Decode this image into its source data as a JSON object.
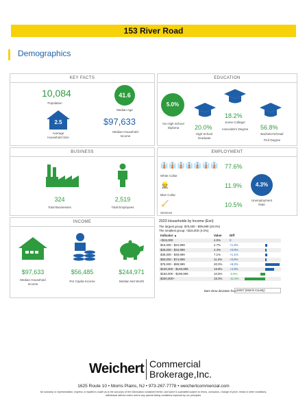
{
  "property_title": "153 River Road",
  "section_title": "Demographics",
  "key_facts": {
    "header": "KEY FACTS",
    "population": {
      "value": "10,084",
      "label": "Population"
    },
    "median_age": {
      "value": "41.6",
      "label": "Median Age"
    },
    "household_size": {
      "value": "2.5",
      "label_1": "Average",
      "label_2": "Household Size"
    },
    "median_income": {
      "value": "$97,633",
      "label_1": "Median Household",
      "label_2": "Income"
    }
  },
  "education": {
    "header": "EDUCATION",
    "no_hs": {
      "value": "5.0%",
      "label_1": "No High School",
      "label_2": "Diploma"
    },
    "hs_grad": {
      "value": "20.0%",
      "label_1": "High School",
      "label_2": "Graduate"
    },
    "some_college": {
      "value": "18.2%",
      "label_1": "Some College/",
      "label_2": "Associate's Degree"
    },
    "bachelor": {
      "value": "56.8%",
      "label_1": "Bachelor's/Grad/",
      "label_2": "Prof Degree"
    }
  },
  "business": {
    "header": "BUSINESS",
    "total_businesses": {
      "value": "324",
      "label": "Total Businesses"
    },
    "total_employees": {
      "value": "2,519",
      "label": "Total Employees"
    }
  },
  "employment": {
    "header": "EMPLOYMENT",
    "white_collar": {
      "value": "77.6%",
      "label": "White Collar"
    },
    "blue_collar": {
      "value": "11.9%",
      "label": "Blue Collar"
    },
    "services": {
      "value": "10.5%",
      "label": "Services"
    },
    "unemployment": {
      "value": "4.3%",
      "label_1": "Unemployment",
      "label_2": "Rate"
    }
  },
  "income": {
    "header": "INCOME",
    "median_household": {
      "value": "$97,633",
      "label_1": "Median Household",
      "label_2": "Income"
    },
    "per_capita": {
      "value": "$56,485",
      "label": "Per Capita Income"
    },
    "net_worth": {
      "value": "$244,971",
      "label": "Median Net Worth"
    }
  },
  "households_by_income": {
    "title": "2023 Households by Income (Esri)",
    "largest": "The largest group: $75,000 - $99,999 (20.0%)",
    "smallest": "The smallest group: <$15,000 (4.0%)",
    "col_indicator": "Indicator ▲",
    "col_value": "Value",
    "col_diff": "Diff",
    "rows": [
      {
        "indicator": "<$15,000",
        "value": "4.0%",
        "diff": "0",
        "diff_num": 0
      },
      {
        "indicator": "$15,000 - $24,999",
        "value": "4.7%",
        "diff": "+1.3%",
        "diff_num": 1.3
      },
      {
        "indicator": "$25,000 - $34,999",
        "value": "4.4%",
        "diff": "+0.9%",
        "diff_num": 0.9
      },
      {
        "indicator": "$35,000 - $49,999",
        "value": "7.1%",
        "diff": "+1.1%",
        "diff_num": 1.1
      },
      {
        "indicator": "$50,000 - $74,999",
        "value": "11.3%",
        "diff": "+0.8%",
        "diff_num": 0.8
      },
      {
        "indicator": "$75,000 - $99,999",
        "value": "20.0%",
        "diff": "+8.2%",
        "diff_num": 8.2
      },
      {
        "indicator": "$100,000 - $149,999",
        "value": "19.8%",
        "diff": "+4.9%",
        "diff_num": 4.9
      },
      {
        "indicator": "$150,000 - $199,999",
        "value": "10.5%",
        "diff": "-2.6%",
        "diff_num": -2.6
      },
      {
        "indicator": "$200,000+",
        "value": "18.3%",
        "diff": "-11.5%",
        "diff_num": -11.5
      }
    ],
    "bars_label": "Bars show deviation from",
    "compare_region": "34027 (Morris County)"
  },
  "footer": {
    "brand": "Weichert",
    "brand_line_1": "Commercial",
    "brand_line_2": "Brokerage,Inc.",
    "address": "1625 Route 10  •  Morris Plains, NJ  •  973-267-7778  •  weichertcommercial.com",
    "disclaimer_1": "No warranty or representation, express or implied is made as to the accuracy of the information contained herein, and same is submitted subject to errors, omissions, change of price, rental or other conditions,",
    "disclaimer_2": "withdrawal without notice and to any special listing conditions imposed by our principals."
  },
  "colors": {
    "green": "#2e9b3e",
    "blue": "#1f5fa8",
    "yellow": "#f7d20a",
    "pos_bar": "#1f5fa8",
    "neg_bar": "#2e9b3e"
  },
  "icons": [
    "house-icon",
    "graduation-cap-icon",
    "factory-icon",
    "person-icon",
    "briefcase-icon",
    "worker-icon",
    "services-icon",
    "coin-stack-icon",
    "piggy-bank-icon"
  ]
}
